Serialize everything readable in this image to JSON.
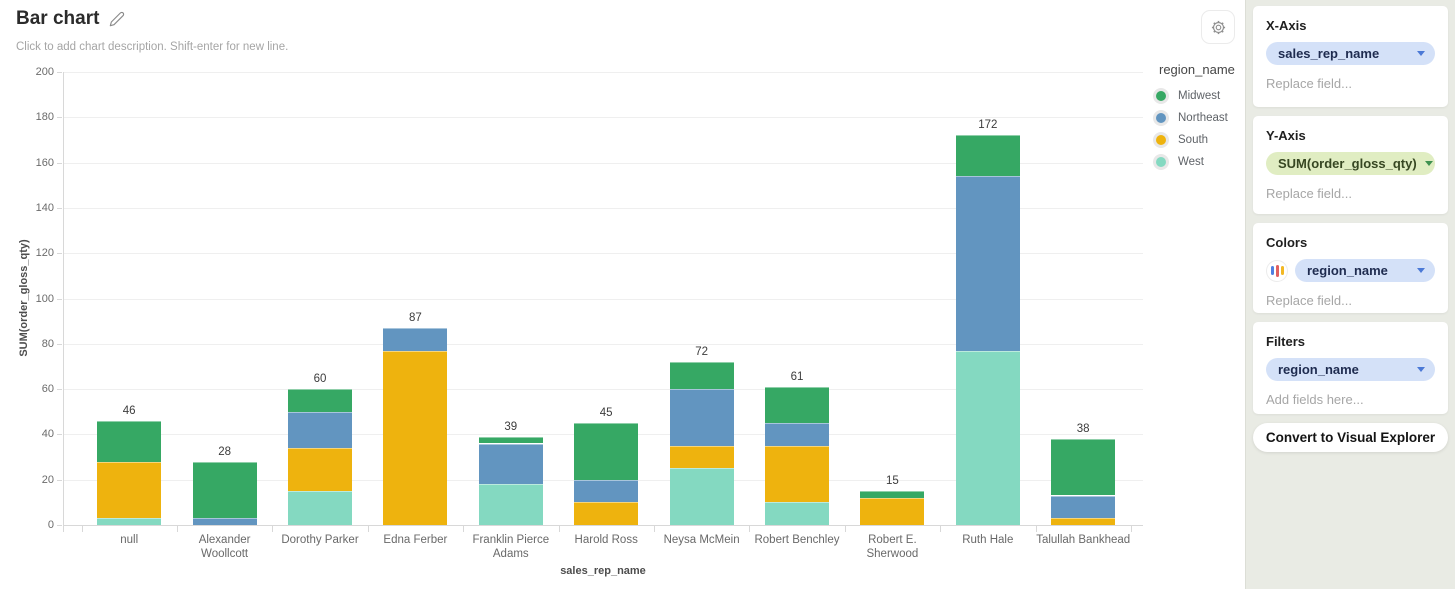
{
  "header": {
    "title": "Bar chart",
    "description_placeholder": "Click to add chart description. Shift-enter for new line.",
    "edit_icon": "pencil-icon",
    "settings_icon": "gear-icon"
  },
  "legend": {
    "title": "region_name",
    "items": [
      {
        "label": "Midwest",
        "color": "#36a864"
      },
      {
        "label": "Northeast",
        "color": "#6295c0"
      },
      {
        "label": "South",
        "color": "#eeb30e"
      },
      {
        "label": "West",
        "color": "#84d9c1"
      }
    ]
  },
  "chart_data": {
    "type": "bar",
    "stacked": true,
    "title": "Bar chart",
    "xlabel": "sales_rep_name",
    "ylabel": "SUM(order_gloss_qty)",
    "ylim": [
      0,
      200
    ],
    "yticks": [
      0,
      20,
      40,
      60,
      80,
      100,
      120,
      140,
      160,
      180,
      200
    ],
    "grid": true,
    "legend_position": "top-right",
    "categories": [
      "null",
      "Alexander Woollcott",
      "Dorothy Parker",
      "Edna Ferber",
      "Franklin Pierce Adams",
      "Harold Ross",
      "Neysa McMein",
      "Robert Benchley",
      "Robert E. Sherwood",
      "Ruth Hale",
      "Talullah Bankhead"
    ],
    "totals": [
      46,
      28,
      60,
      87,
      39,
      45,
      72,
      61,
      15,
      172,
      38
    ],
    "stack_order_bottom_to_top": [
      "West",
      "South",
      "Northeast",
      "Midwest"
    ],
    "series": [
      {
        "name": "Midwest",
        "color": "#36a864",
        "values": [
          18,
          25,
          10,
          0,
          3,
          25,
          12,
          16,
          3,
          18,
          25
        ]
      },
      {
        "name": "Northeast",
        "color": "#6295c0",
        "values": [
          0,
          3,
          16,
          10,
          18,
          10,
          25,
          10,
          0,
          77,
          10
        ]
      },
      {
        "name": "South",
        "color": "#eeb30e",
        "values": [
          25,
          0,
          19,
          77,
          0,
          10,
          10,
          25,
          12,
          0,
          3
        ]
      },
      {
        "name": "West",
        "color": "#84d9c1",
        "values": [
          3,
          0,
          15,
          0,
          18,
          0,
          25,
          10,
          0,
          77,
          0
        ]
      }
    ]
  },
  "sidebar": {
    "sections": [
      {
        "title": "X-Axis",
        "pill": "sales_rep_name",
        "placeholder": "Replace field..."
      },
      {
        "title": "Y-Axis",
        "pill": "SUM(order_gloss_qty)",
        "placeholder": "Replace field..."
      },
      {
        "title": "Colors",
        "pill": "region_name",
        "placeholder": "Replace field...",
        "palette_icon": "palette-icon"
      },
      {
        "title": "Filters",
        "pill": "region_name",
        "placeholder": "Add fields here..."
      }
    ],
    "convert_button": "Convert to Visual Explorer",
    "palette_icon_colors": [
      "#4f7fe0",
      "#e06060",
      "#f2b824"
    ]
  }
}
